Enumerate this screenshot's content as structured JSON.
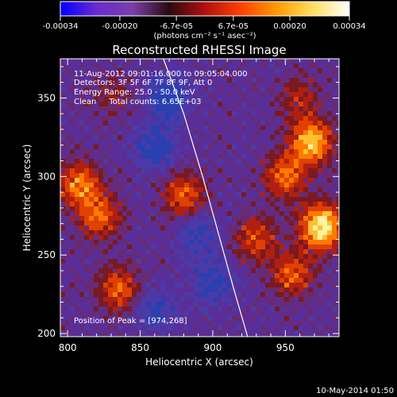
{
  "chart_data": {
    "type": "heatmap",
    "title": "Reconstructed RHESSI Image",
    "xlabel": "Heliocentric X (arcsec)",
    "ylabel": "Heliocentric Y (arcsec)",
    "xlim": [
      795,
      987
    ],
    "ylim": [
      198,
      375
    ],
    "x_ticks": [
      800,
      850,
      900,
      950
    ],
    "y_ticks": [
      200,
      250,
      300,
      350
    ],
    "colorbar": {
      "ticks": [
        "-0.00034",
        "-0.00020",
        "-6.7e-05",
        "6.7e-05",
        "0.00020",
        "0.00034"
      ],
      "tick_values": [
        -0.00034,
        -0.0002,
        -6.7e-05,
        6.7e-05,
        0.0002,
        0.00034
      ],
      "units_label": "(photons cm⁻² s⁻¹ asec⁻²)",
      "colors": [
        "#0000ff",
        "#6a2bd0",
        "#7a3faa",
        "#2a0a10",
        "#b01010",
        "#ff4000",
        "#ff9a00",
        "#ffe060",
        "#ffffff"
      ]
    },
    "annotations": [
      "11-Aug-2012 09:01:16.000 to 09:05:04.000",
      "Detectors: 3F 5F 6F 7F 8F 9F, Att 0",
      "Energy Range: 25.0 - 50.0 keV",
      "Clean     Total counts: 6.65E+03"
    ],
    "peak_text": "Position of Peak = [974,268]",
    "peak": [
      974,
      268
    ],
    "limb_curve": {
      "x": [
        866,
        880,
        893,
        905,
        914,
        924
      ],
      "y": [
        375,
        340,
        300,
        260,
        230,
        198
      ]
    },
    "grid": false,
    "bright_sources": [
      {
        "x": 975,
        "y": 268,
        "intensity": 1.0
      },
      {
        "x": 968,
        "y": 322,
        "intensity": 0.8
      },
      {
        "x": 808,
        "y": 295,
        "intensity": 0.6
      },
      {
        "x": 822,
        "y": 275,
        "intensity": 0.55
      },
      {
        "x": 835,
        "y": 228,
        "intensity": 0.5
      },
      {
        "x": 880,
        "y": 288,
        "intensity": 0.5
      },
      {
        "x": 950,
        "y": 300,
        "intensity": 0.55
      },
      {
        "x": 955,
        "y": 238,
        "intensity": 0.5
      },
      {
        "x": 930,
        "y": 260,
        "intensity": 0.45
      },
      {
        "x": 960,
        "y": 350,
        "intensity": 0.3
      },
      {
        "x": 830,
        "y": 352,
        "intensity": 0.2
      }
    ],
    "dim_regions": [
      {
        "x": 870,
        "y": 350,
        "intensity": -0.45
      },
      {
        "x": 860,
        "y": 318,
        "intensity": -0.4
      },
      {
        "x": 900,
        "y": 232,
        "intensity": -0.35
      },
      {
        "x": 890,
        "y": 262,
        "intensity": -0.3
      },
      {
        "x": 860,
        "y": 215,
        "intensity": -0.3
      }
    ]
  },
  "footer": {
    "timestamp": "10-May-2014 01:50"
  }
}
